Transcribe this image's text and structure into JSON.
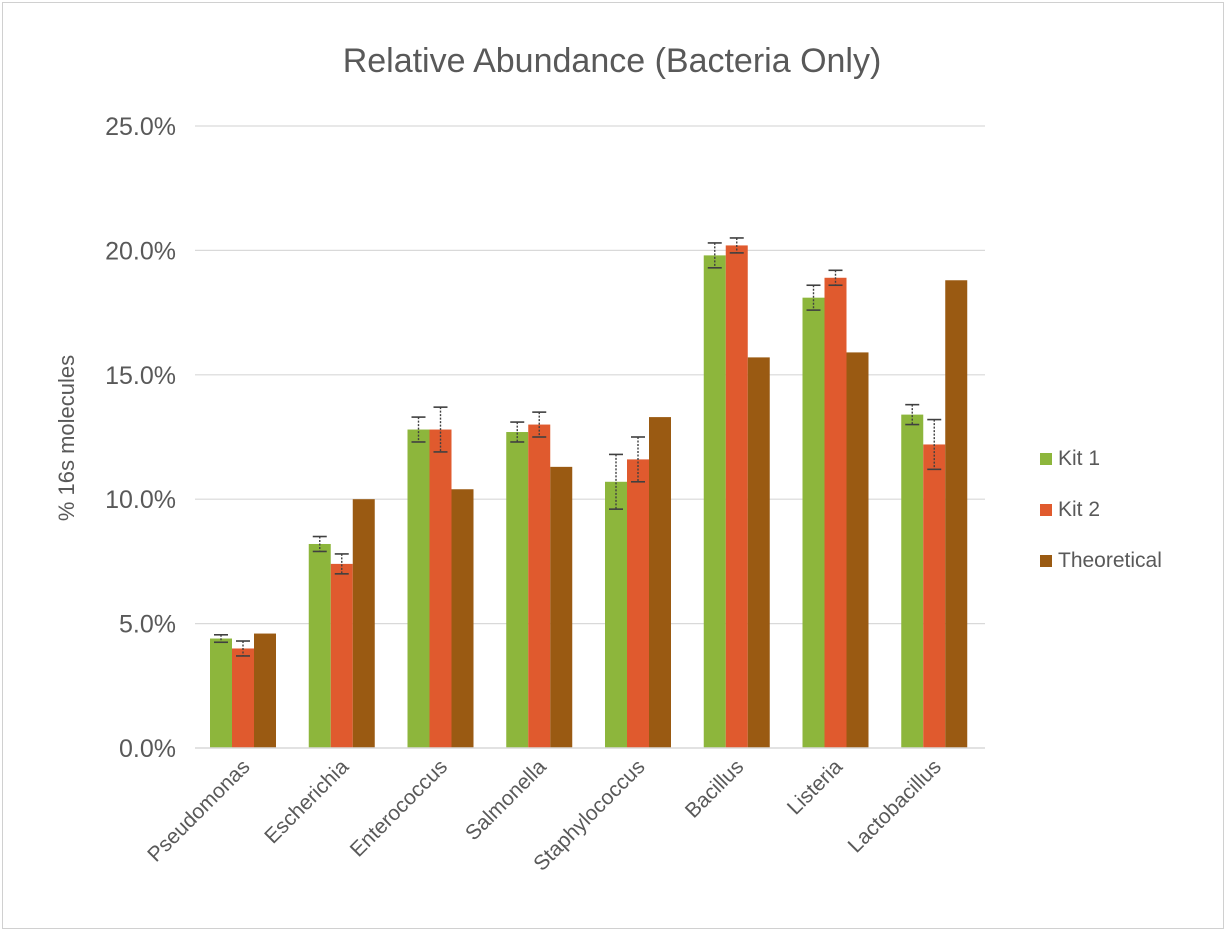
{
  "chart_data": {
    "type": "bar",
    "title": "Relative Abundance (Bacteria Only)",
    "ylabel": "% 16s molecules",
    "xlabel": "",
    "ylim": [
      0,
      25
    ],
    "yticks": [
      0,
      5,
      10,
      15,
      20,
      25
    ],
    "ytick_labels": [
      "0.0%",
      "5.0%",
      "10.0%",
      "15.0%",
      "20.0%",
      "25.0%"
    ],
    "grid": true,
    "legend_position": "right",
    "categories": [
      "Pseudomonas",
      "Escherichia",
      "Enterococcus",
      "Salmonella",
      "Staphylococcus",
      "Bacillus",
      "Listeria",
      "Lactobacillus"
    ],
    "series": [
      {
        "name": "Kit 1",
        "color": "#8db63c",
        "values": [
          4.4,
          8.2,
          12.8,
          12.7,
          10.7,
          19.8,
          18.1,
          13.4
        ],
        "errors": [
          0.15,
          0.3,
          0.5,
          0.4,
          1.1,
          0.5,
          0.5,
          0.4
        ]
      },
      {
        "name": "Kit 2",
        "color": "#e05a2e",
        "values": [
          4.0,
          7.4,
          12.8,
          13.0,
          11.6,
          20.2,
          18.9,
          12.2
        ],
        "errors": [
          0.3,
          0.4,
          0.9,
          0.5,
          0.9,
          0.3,
          0.3,
          1.0
        ]
      },
      {
        "name": "Theoretical",
        "color": "#9a5a12",
        "values": [
          4.6,
          10.0,
          10.4,
          11.3,
          13.3,
          15.7,
          15.9,
          18.8
        ],
        "errors": null
      }
    ]
  }
}
